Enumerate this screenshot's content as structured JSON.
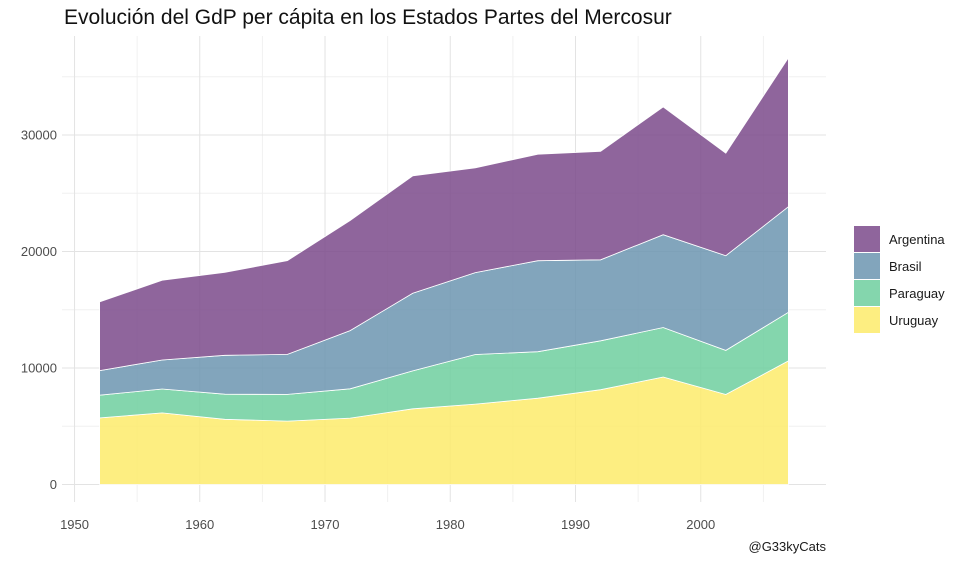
{
  "chart_data": {
    "type": "area",
    "stacked": true,
    "title": "Evolución del GdP per cápita en los Estados Partes del Mercosur",
    "caption": "@G33kyCats",
    "xlabel": "",
    "ylabel": "",
    "xlim": [
      1949,
      2010
    ],
    "ylim": [
      -1500,
      38500
    ],
    "x_ticks": [
      1950,
      1960,
      1970,
      1980,
      1990,
      2000
    ],
    "x_tick_labels": [
      "1950",
      "1960",
      "1970",
      "1980",
      "1990",
      "2000"
    ],
    "y_ticks": [
      0,
      10000,
      20000,
      30000
    ],
    "y_tick_labels": [
      "0",
      "10000",
      "20000",
      "30000"
    ],
    "grid": true,
    "legend_position": "right",
    "x": [
      1952,
      1957,
      1962,
      1967,
      1972,
      1977,
      1982,
      1987,
      1992,
      1997,
      2002,
      2007
    ],
    "series": [
      {
        "name": "Argentina",
        "color": "#7b4a8b",
        "values": [
          5900,
          6850,
          7130,
          8050,
          9450,
          10080,
          8990,
          9140,
          9310,
          10970,
          8800,
          12780
        ]
      },
      {
        "name": "Brasil",
        "color": "#6c95b0",
        "values": [
          2110,
          2490,
          3340,
          3430,
          4990,
          6660,
          7030,
          7810,
          6950,
          7960,
          8130,
          9070
        ]
      },
      {
        "name": "Paraguay",
        "color": "#6ecf9f",
        "values": [
          1950,
          2050,
          2150,
          2300,
          2520,
          3250,
          4260,
          3990,
          4200,
          4250,
          3780,
          4170
        ]
      },
      {
        "name": "Uruguay",
        "color": "#fdeb6b",
        "values": [
          5720,
          6150,
          5600,
          5440,
          5700,
          6500,
          6900,
          7410,
          8140,
          9230,
          7730,
          10610
        ]
      }
    ]
  }
}
